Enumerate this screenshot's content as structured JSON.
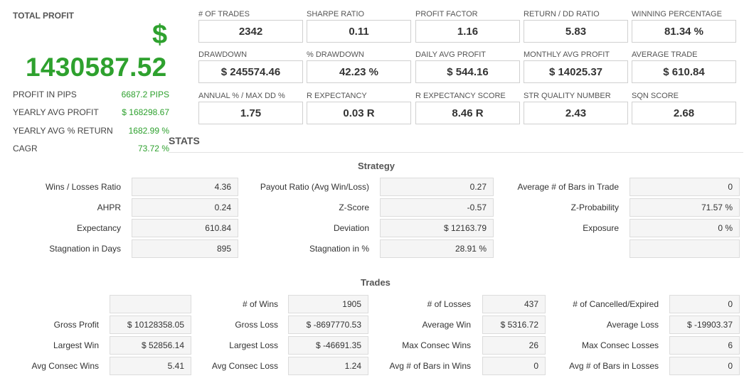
{
  "total_profit": {
    "title": "TOTAL PROFIT",
    "currency": "$",
    "value": "1430587.52",
    "rows": [
      {
        "label": "PROFIT IN PIPS",
        "value": "6687.2 PIPS"
      },
      {
        "label": "YEARLY AVG PROFIT",
        "value": "$ 168298.67"
      },
      {
        "label": "YEARLY AVG % RETURN",
        "value": "1682.99 %"
      },
      {
        "label": "CAGR",
        "value": "73.72 %"
      }
    ]
  },
  "cards": [
    {
      "label": "# OF TRADES",
      "value": "2342"
    },
    {
      "label": "SHARPE RATIO",
      "value": "0.11"
    },
    {
      "label": "PROFIT FACTOR",
      "value": "1.16"
    },
    {
      "label": "RETURN / DD RATIO",
      "value": "5.83"
    },
    {
      "label": "WINNING PERCENTAGE",
      "value": "81.34 %"
    },
    {
      "label": "DRAWDOWN",
      "value": "$ 245574.46"
    },
    {
      "label": "% DRAWDOWN",
      "value": "42.23 %"
    },
    {
      "label": "DAILY AVG PROFIT",
      "value": "$ 544.16"
    },
    {
      "label": "MONTHLY AVG PROFIT",
      "value": "$ 14025.37"
    },
    {
      "label": "AVERAGE TRADE",
      "value": "$ 610.84"
    },
    {
      "label": "ANNUAL % / MAX DD %",
      "value": "1.75"
    },
    {
      "label": "R EXPECTANCY",
      "value": "0.03 R"
    },
    {
      "label": "R EXPECTANCY SCORE",
      "value": "8.46 R"
    },
    {
      "label": "STR QUALITY NUMBER",
      "value": "2.43"
    },
    {
      "label": "SQN SCORE",
      "value": "2.68"
    }
  ],
  "stats_title": "STATS",
  "strategy": {
    "title": "Strategy",
    "rows": [
      [
        {
          "label": "Wins / Losses Ratio",
          "value": "4.36"
        },
        {
          "label": "Payout Ratio (Avg Win/Loss)",
          "value": "0.27"
        },
        {
          "label": "Average # of Bars in Trade",
          "value": "0"
        }
      ],
      [
        {
          "label": "AHPR",
          "value": "0.24"
        },
        {
          "label": "Z-Score",
          "value": "-0.57"
        },
        {
          "label": "Z-Probability",
          "value": "71.57 %"
        }
      ],
      [
        {
          "label": "Expectancy",
          "value": "610.84"
        },
        {
          "label": "Deviation",
          "value": "$ 12163.79"
        },
        {
          "label": "Exposure",
          "value": "0 %"
        }
      ],
      [
        {
          "label": "Stagnation in Days",
          "value": "895"
        },
        {
          "label": "Stagnation in %",
          "value": "28.91 %"
        },
        {
          "label": "",
          "value": ""
        }
      ]
    ]
  },
  "trades": {
    "title": "Trades",
    "rows": [
      [
        {
          "label": "",
          "value": ""
        },
        {
          "label": "# of Wins",
          "value": "1905"
        },
        {
          "label": "# of Losses",
          "value": "437"
        },
        {
          "label": "# of Cancelled/Expired",
          "value": "0"
        }
      ],
      [
        {
          "label": "Gross Profit",
          "value": "$ 10128358.05"
        },
        {
          "label": "Gross Loss",
          "value": "$ -8697770.53"
        },
        {
          "label": "Average Win",
          "value": "$ 5316.72"
        },
        {
          "label": "Average Loss",
          "value": "$ -19903.37"
        }
      ],
      [
        {
          "label": "Largest Win",
          "value": "$ 52856.14"
        },
        {
          "label": "Largest Loss",
          "value": "$ -46691.35"
        },
        {
          "label": "Max Consec Wins",
          "value": "26"
        },
        {
          "label": "Max Consec Losses",
          "value": "6"
        }
      ],
      [
        {
          "label": "Avg Consec Wins",
          "value": "5.41"
        },
        {
          "label": "Avg Consec Loss",
          "value": "1.24"
        },
        {
          "label": "Avg # of Bars in Wins",
          "value": "0"
        },
        {
          "label": "Avg # of Bars in Losses",
          "value": "0"
        }
      ]
    ]
  },
  "colors": {
    "profit_green": "#2ea12e",
    "box_border": "#d0d0d0",
    "box_fill": "#f5f5f5"
  }
}
